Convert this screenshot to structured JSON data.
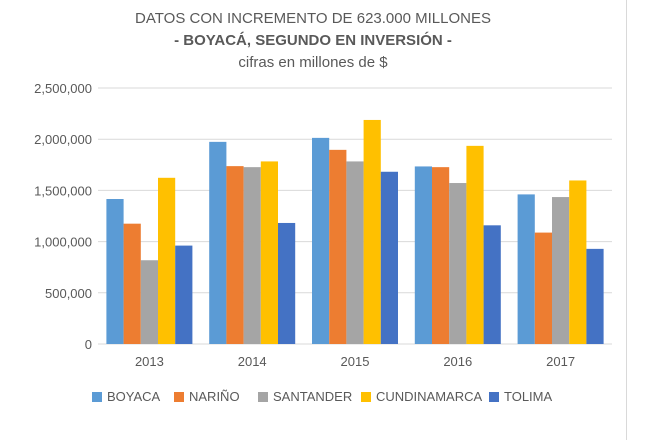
{
  "chart_data": {
    "type": "bar",
    "title": "DATOS CON INCREMENTO DE 623.000 MILLONES",
    "subtitle": "- BOYACÁ, SEGUNDO EN INVERSIÓN -",
    "subtitle2": "cifras en millones de $",
    "xlabel": "",
    "ylabel": "",
    "categories": [
      "2013",
      "2014",
      "2015",
      "2016",
      "2017"
    ],
    "ylim": [
      0,
      2500000
    ],
    "yticks": [
      0,
      500000,
      1000000,
      1500000,
      2000000,
      2500000
    ],
    "ytick_labels": [
      "0",
      "500,000",
      "1,000,000",
      "1,500,000",
      "2,000,000",
      "2,500,000"
    ],
    "grid": true,
    "legend_position": "bottom",
    "series": [
      {
        "name": "BOYACA",
        "color": "#5b9bd5",
        "values": [
          1416000,
          1974000,
          2013000,
          1734000,
          1461000
        ]
      },
      {
        "name": "NARIÑO",
        "color": "#ed7d31",
        "values": [
          1175000,
          1737000,
          1896000,
          1727000,
          1088000
        ]
      },
      {
        "name": "SANTANDER",
        "color": "#a5a5a5",
        "values": [
          818000,
          1727000,
          1783000,
          1572000,
          1435000
        ]
      },
      {
        "name": "CUNDINAMARCA",
        "color": "#ffc000",
        "values": [
          1623000,
          1783000,
          2188000,
          1935000,
          1597000
        ]
      },
      {
        "name": "TOLIMA",
        "color": "#4472c4",
        "values": [
          961000,
          1182000,
          1682000,
          1159000,
          929000
        ]
      }
    ]
  }
}
